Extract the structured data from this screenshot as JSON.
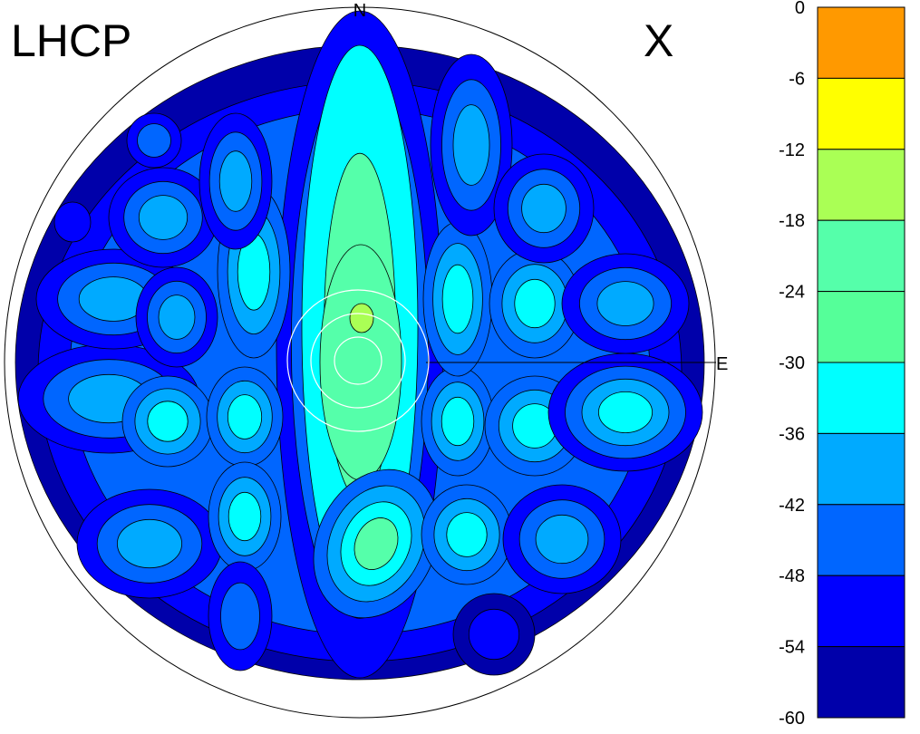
{
  "header": {
    "polarization": "LHCP",
    "component": "X"
  },
  "compass": {
    "north": "N",
    "east": "E"
  },
  "chart_data": {
    "type": "heatmap",
    "projection": "polar-hemisphere",
    "colorbar": {
      "ticks": [
        0,
        -6,
        -12,
        -18,
        -24,
        -30,
        -36,
        -42,
        -48,
        -54,
        -60
      ],
      "range": [
        -60,
        0
      ],
      "colors": [
        "#FF9900",
        "#FFFF00",
        "#AAFF55",
        "#55FFAA",
        "#55FF99",
        "#00FFFF",
        "#00AAFF",
        "#0066FF",
        "#0000FF",
        "#0000AA"
      ]
    },
    "levels": {
      "l0": "#0000AA",
      "l1": "#0000FF",
      "l2": "#0066FF",
      "l3": "#00AAFF",
      "l4": "#00FFFF",
      "l5": "#55FFAA"
    },
    "peak_value_range": [
      -18,
      -12
    ],
    "grid": false
  }
}
